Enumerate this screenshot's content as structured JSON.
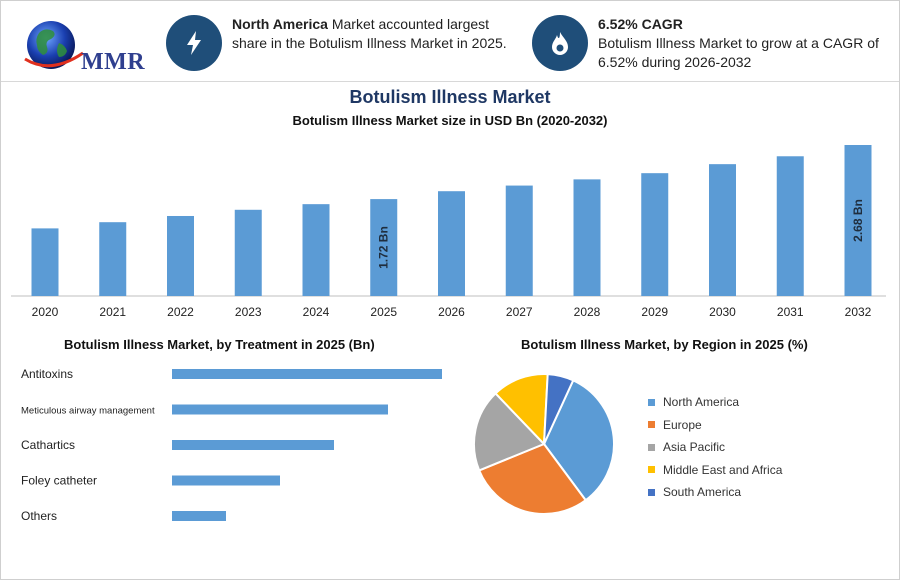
{
  "header": {
    "logo_text": "MMR",
    "info1": {
      "bold": "North America",
      "text": " Market accounted largest share in the Botulism Illness Market in 2025."
    },
    "info2": {
      "head": "6.52% CAGR",
      "text": "Botulism Illness Market to grow at a CAGR of 6.52% during 2026-2032"
    },
    "icons": [
      "lightning-icon",
      "flame-drop-icon",
      "globe-icon"
    ]
  },
  "titles": {
    "main": "Botulism Illness Market",
    "sub": "Botulism Illness Market size in USD Bn (2020-2032)",
    "treatment": "Botulism Illness Market, by Treatment in 2025 (Bn)",
    "region": "Botulism Illness Market, by Region in 2025 (%)"
  },
  "chart_data": [
    {
      "type": "bar",
      "title": "Botulism Illness Market size in USD Bn (2020-2032)",
      "categories": [
        "2020",
        "2021",
        "2022",
        "2023",
        "2024",
        "2025",
        "2026",
        "2027",
        "2028",
        "2029",
        "2030",
        "2031",
        "2032"
      ],
      "values": [
        1.2,
        1.31,
        1.42,
        1.53,
        1.63,
        1.72,
        1.86,
        1.96,
        2.07,
        2.18,
        2.34,
        2.48,
        2.68
      ],
      "data_labels": {
        "2025": "1.72 Bn",
        "2032": "2.68 Bn"
      },
      "ylim": [
        0,
        2.68
      ],
      "grid": false,
      "color": "#5b9bd5"
    },
    {
      "type": "bar",
      "orientation": "horizontal",
      "title": "Botulism Illness Market, by Treatment in 2025 (Bn)",
      "categories": [
        "Antitoxins",
        "Meticulous airway management",
        "Cathartics",
        "Foley catheter",
        "Others"
      ],
      "values": [
        0.6,
        0.48,
        0.36,
        0.24,
        0.12
      ],
      "xlim": [
        0,
        0.6
      ],
      "color": "#5b9bd5"
    },
    {
      "type": "pie",
      "title": "Botulism Illness Market, by Region in 2025 (%)",
      "categories": [
        "North America",
        "Europe",
        "Asia Pacific",
        "Middle East and Africa",
        "South America"
      ],
      "values": [
        33,
        29,
        19,
        13,
        6
      ],
      "colors": [
        "#5b9bd5",
        "#ed7d31",
        "#a5a5a5",
        "#ffc000",
        "#4472c4"
      ],
      "legend": "right"
    }
  ]
}
